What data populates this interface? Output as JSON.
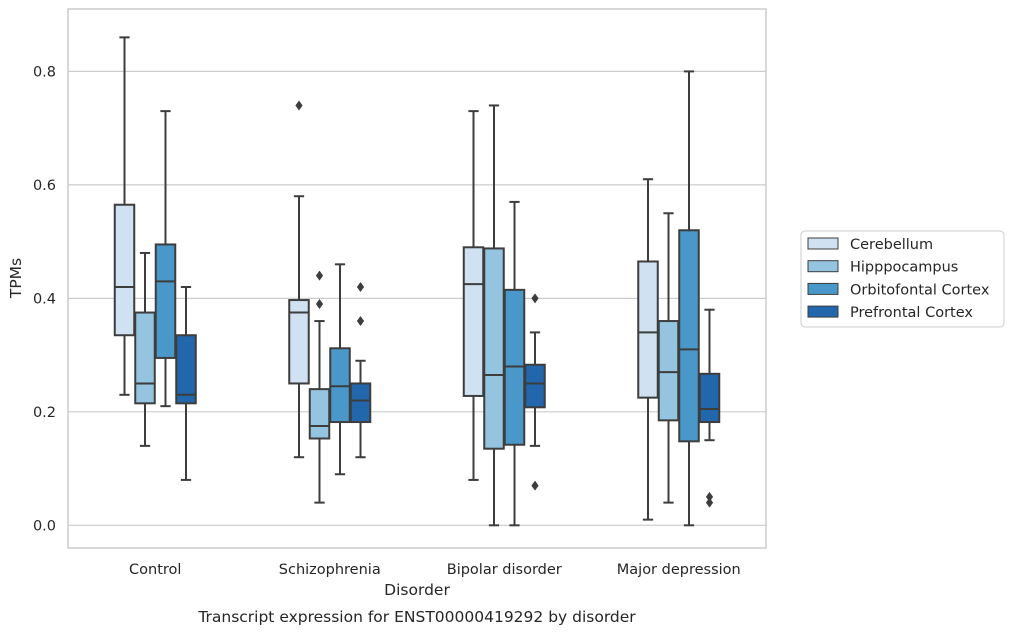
{
  "chart_data": {
    "type": "box",
    "xlabel": "Disorder",
    "ylabel": "TPMs",
    "caption": "Transcript expression for ENST00000419292 by disorder",
    "ylim": [
      -0.04,
      0.91
    ],
    "yticks": [
      "0.0",
      "0.2",
      "0.4",
      "0.6",
      "0.8"
    ],
    "ytick_values": [
      0.0,
      0.2,
      0.4,
      0.6,
      0.8
    ],
    "grid": "horizontal",
    "legend_placement": "right",
    "categories": [
      "Control",
      "Schizophrenia",
      "Bipolar disorder",
      "Major depression"
    ],
    "series": [
      {
        "name": "Cerebellum",
        "color": "#d0e1f2",
        "boxes": [
          {
            "whislo": 0.23,
            "q1": 0.335,
            "med": 0.42,
            "q3": 0.565,
            "whishi": 0.86,
            "fliers": []
          },
          {
            "whislo": 0.12,
            "q1": 0.25,
            "med": 0.375,
            "q3": 0.397,
            "whishi": 0.58,
            "fliers": [
              0.74
            ]
          },
          {
            "whislo": 0.08,
            "q1": 0.228,
            "med": 0.425,
            "q3": 0.49,
            "whishi": 0.73,
            "fliers": []
          },
          {
            "whislo": 0.01,
            "q1": 0.225,
            "med": 0.34,
            "q3": 0.465,
            "whishi": 0.61,
            "fliers": []
          }
        ]
      },
      {
        "name": "Hipppocampus",
        "color": "#94c4df",
        "boxes": [
          {
            "whislo": 0.14,
            "q1": 0.215,
            "med": 0.25,
            "q3": 0.375,
            "whishi": 0.48,
            "fliers": []
          },
          {
            "whislo": 0.04,
            "q1": 0.153,
            "med": 0.175,
            "q3": 0.24,
            "whishi": 0.36,
            "fliers": [
              0.39,
              0.44
            ]
          },
          {
            "whislo": 0.0,
            "q1": 0.135,
            "med": 0.265,
            "q3": 0.488,
            "whishi": 0.74,
            "fliers": []
          },
          {
            "whislo": 0.04,
            "q1": 0.185,
            "med": 0.27,
            "q3": 0.36,
            "whishi": 0.55,
            "fliers": []
          }
        ]
      },
      {
        "name": "Orbitofontal Cortex",
        "color": "#4a98c9",
        "boxes": [
          {
            "whislo": 0.21,
            "q1": 0.295,
            "med": 0.43,
            "q3": 0.495,
            "whishi": 0.73,
            "fliers": []
          },
          {
            "whislo": 0.09,
            "q1": 0.182,
            "med": 0.245,
            "q3": 0.312,
            "whishi": 0.46,
            "fliers": []
          },
          {
            "whislo": 0.0,
            "q1": 0.142,
            "med": 0.28,
            "q3": 0.415,
            "whishi": 0.57,
            "fliers": []
          },
          {
            "whislo": 0.0,
            "q1": 0.148,
            "med": 0.31,
            "q3": 0.52,
            "whishi": 0.8,
            "fliers": []
          }
        ]
      },
      {
        "name": "Prefrontal Cortex",
        "color": "#2266ac",
        "boxes": [
          {
            "whislo": 0.08,
            "q1": 0.215,
            "med": 0.23,
            "q3": 0.335,
            "whishi": 0.42,
            "fliers": []
          },
          {
            "whislo": 0.12,
            "q1": 0.182,
            "med": 0.22,
            "q3": 0.25,
            "whishi": 0.29,
            "fliers": [
              0.36,
              0.42
            ]
          },
          {
            "whislo": 0.14,
            "q1": 0.208,
            "med": 0.25,
            "q3": 0.283,
            "whishi": 0.34,
            "fliers": [
              0.07,
              0.4
            ]
          },
          {
            "whislo": 0.15,
            "q1": 0.182,
            "med": 0.205,
            "q3": 0.267,
            "whishi": 0.38,
            "fliers": [
              0.04,
              0.05
            ]
          }
        ]
      }
    ]
  }
}
